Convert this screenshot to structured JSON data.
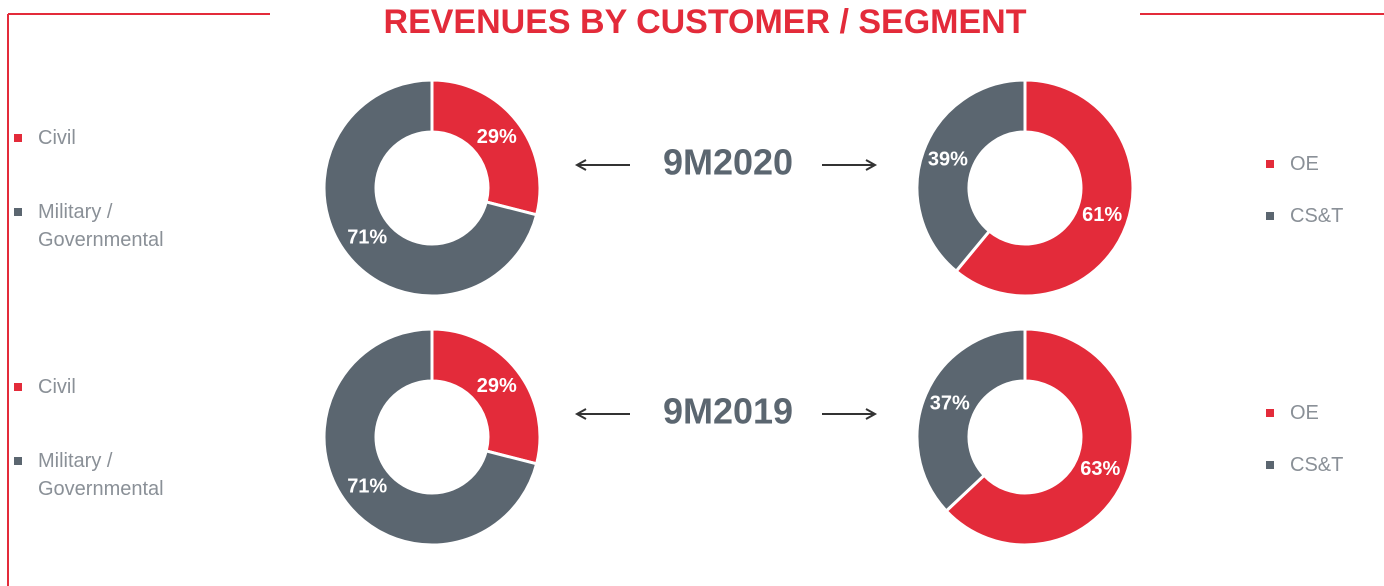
{
  "title": "REVENUES BY CUSTOMER / SEGMENT",
  "periods": [
    "9M2020",
    "9M2019"
  ],
  "chart_data": [
    {
      "type": "pie",
      "categories": [
        "Civil",
        "Military / Governmental"
      ],
      "values": [
        29,
        71
      ],
      "value_labels": [
        "29%",
        "71%"
      ],
      "colors": [
        "#e32b3a",
        "#5b6670"
      ]
    },
    {
      "type": "pie",
      "categories": [
        "OE",
        "CS&T"
      ],
      "values": [
        61,
        39
      ],
      "value_labels": [
        "61%",
        "39%"
      ],
      "colors": [
        "#e32b3a",
        "#5b6670"
      ]
    },
    {
      "type": "pie",
      "categories": [
        "Civil",
        "Military / Governmental"
      ],
      "values": [
        29,
        71
      ],
      "value_labels": [
        "29%",
        "71%"
      ],
      "colors": [
        "#e32b3a",
        "#5b6670"
      ]
    },
    {
      "type": "pie",
      "categories": [
        "OE",
        "CS&T"
      ],
      "values": [
        63,
        37
      ],
      "value_labels": [
        "63%",
        "37%"
      ],
      "colors": [
        "#e32b3a",
        "#5b6670"
      ]
    }
  ]
}
